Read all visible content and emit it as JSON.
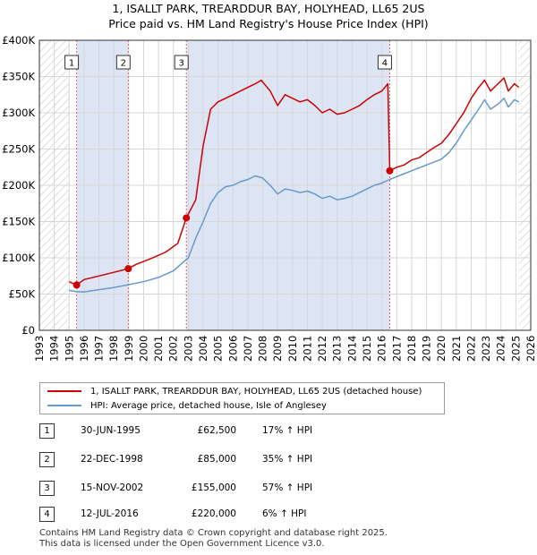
{
  "title_line1": "1, ISALLT PARK, TREARDDUR BAY, HOLYHEAD, LL65 2US",
  "title_line2": "Price paid vs. HM Land Registry's House Price Index (HPI)",
  "colors": {
    "property": "#cc0000",
    "hpi": "#6699cc",
    "shade": "#dde5f5",
    "hatch": "#c8c8c8",
    "grid": "#d7d7d7",
    "vline": "#e06666"
  },
  "legend": {
    "property_label": "1, ISALLT PARK, TREARDDUR BAY, HOLYHEAD, LL65 2US (detached house)",
    "hpi_label": "HPI: Average price, detached house, Isle of Anglesey"
  },
  "transactions": [
    {
      "num": "1",
      "date": "30-JUN-1995",
      "price": "£62,500",
      "hpi": "17% ↑ HPI"
    },
    {
      "num": "2",
      "date": "22-DEC-1998",
      "price": "£85,000",
      "hpi": "35% ↑ HPI"
    },
    {
      "num": "3",
      "date": "15-NOV-2002",
      "price": "£155,000",
      "hpi": "57% ↑ HPI"
    },
    {
      "num": "4",
      "date": "12-JUL-2016",
      "price": "£220,000",
      "hpi": "6% ↑ HPI"
    }
  ],
  "footer_line1": "Contains HM Land Registry data © Crown copyright and database right 2025.",
  "footer_line2": "This data is licensed under the Open Government Licence v3.0.",
  "chart_data": {
    "type": "line",
    "xlim": [
      1993,
      2026
    ],
    "ylim": [
      0,
      400000
    ],
    "x_ticks": [
      1993,
      1994,
      1995,
      1996,
      1997,
      1998,
      1999,
      2000,
      2001,
      2002,
      2003,
      2004,
      2005,
      2006,
      2007,
      2008,
      2009,
      2010,
      2011,
      2012,
      2013,
      2014,
      2015,
      2016,
      2017,
      2018,
      2019,
      2020,
      2021,
      2022,
      2023,
      2024,
      2025,
      2026
    ],
    "y_ticks": [
      {
        "value": 0,
        "label": "£0"
      },
      {
        "value": 50000,
        "label": "£50K"
      },
      {
        "value": 100000,
        "label": "£100K"
      },
      {
        "value": 150000,
        "label": "£150K"
      },
      {
        "value": 200000,
        "label": "£200K"
      },
      {
        "value": 250000,
        "label": "£250K"
      },
      {
        "value": 300000,
        "label": "£300K"
      },
      {
        "value": 350000,
        "label": "£350K"
      },
      {
        "value": 400000,
        "label": "£400K"
      }
    ],
    "data_start": 1995.0,
    "data_end": 2025.2,
    "shaded_ranges": [
      [
        1995.5,
        1998.97
      ],
      [
        2002.87,
        2016.53
      ]
    ],
    "markers": [
      {
        "label": "1",
        "x": 1995.5,
        "y": 62500
      },
      {
        "label": "2",
        "x": 1998.97,
        "y": 85000
      },
      {
        "label": "3",
        "x": 2002.87,
        "y": 155000
      },
      {
        "label": "4",
        "x": 2016.53,
        "y": 220000
      }
    ],
    "series": [
      {
        "name": "1, ISALLT PARK, TREARDDUR BAY, HOLYHEAD, LL65 2US (detached house)",
        "x": [
          1995.0,
          1995.5,
          1996.0,
          1997.0,
          1998.0,
          1998.97,
          1999.5,
          2000.5,
          2001.5,
          2002.3,
          2002.87,
          2003.5,
          2004.0,
          2004.5,
          2005.0,
          2005.5,
          2006.0,
          2006.5,
          2007.0,
          2007.5,
          2007.9,
          2008.5,
          2009.0,
          2009.5,
          2010.0,
          2010.5,
          2011.0,
          2011.5,
          2012.0,
          2012.5,
          2013.0,
          2013.5,
          2014.0,
          2014.5,
          2015.0,
          2015.5,
          2016.0,
          2016.4,
          2016.53,
          2017.0,
          2017.5,
          2018.0,
          2018.5,
          2019.0,
          2019.5,
          2020.0,
          2020.5,
          2021.0,
          2021.5,
          2022.0,
          2022.5,
          2022.9,
          2023.3,
          2023.8,
          2024.2,
          2024.5,
          2024.9,
          2025.2
        ],
        "values": [
          67000,
          62500,
          70000,
          75000,
          80000,
          85000,
          91000,
          99000,
          108000,
          120000,
          155000,
          180000,
          255000,
          305000,
          315000,
          320000,
          325000,
          330000,
          335000,
          340000,
          345000,
          330000,
          310000,
          325000,
          320000,
          315000,
          318000,
          310000,
          300000,
          305000,
          298000,
          300000,
          305000,
          310000,
          318000,
          325000,
          330000,
          340000,
          220000,
          225000,
          228000,
          235000,
          238000,
          245000,
          252000,
          258000,
          270000,
          285000,
          300000,
          320000,
          335000,
          345000,
          330000,
          340000,
          348000,
          330000,
          340000,
          335000
        ]
      },
      {
        "name": "HPI: Average price, detached house, Isle of Anglesey",
        "x": [
          1995.0,
          1995.5,
          1996.0,
          1997.0,
          1998.0,
          1999.0,
          2000.0,
          2001.0,
          2002.0,
          2003.0,
          2003.5,
          2004.0,
          2004.5,
          2005.0,
          2005.5,
          2006.0,
          2006.5,
          2007.0,
          2007.5,
          2008.0,
          2008.5,
          2009.0,
          2009.5,
          2010.0,
          2010.5,
          2011.0,
          2011.5,
          2012.0,
          2012.5,
          2013.0,
          2013.5,
          2014.0,
          2014.5,
          2015.0,
          2015.5,
          2016.0,
          2016.53,
          2017.0,
          2017.5,
          2018.0,
          2018.5,
          2019.0,
          2019.5,
          2020.0,
          2020.5,
          2021.0,
          2021.5,
          2022.0,
          2022.5,
          2022.9,
          2023.3,
          2023.8,
          2024.2,
          2024.5,
          2024.9,
          2025.2
        ],
        "values": [
          55000,
          53500,
          53000,
          56000,
          59000,
          63000,
          67000,
          73000,
          82000,
          100000,
          127000,
          150000,
          175000,
          190000,
          198000,
          200000,
          205000,
          208000,
          213000,
          210000,
          200000,
          188000,
          195000,
          193000,
          190000,
          192000,
          188000,
          182000,
          185000,
          180000,
          182000,
          185000,
          190000,
          195000,
          200000,
          203000,
          208000,
          212000,
          216000,
          220000,
          224000,
          228000,
          232000,
          236000,
          245000,
          258000,
          275000,
          290000,
          305000,
          318000,
          305000,
          312000,
          320000,
          308000,
          318000,
          315000
        ]
      }
    ]
  }
}
